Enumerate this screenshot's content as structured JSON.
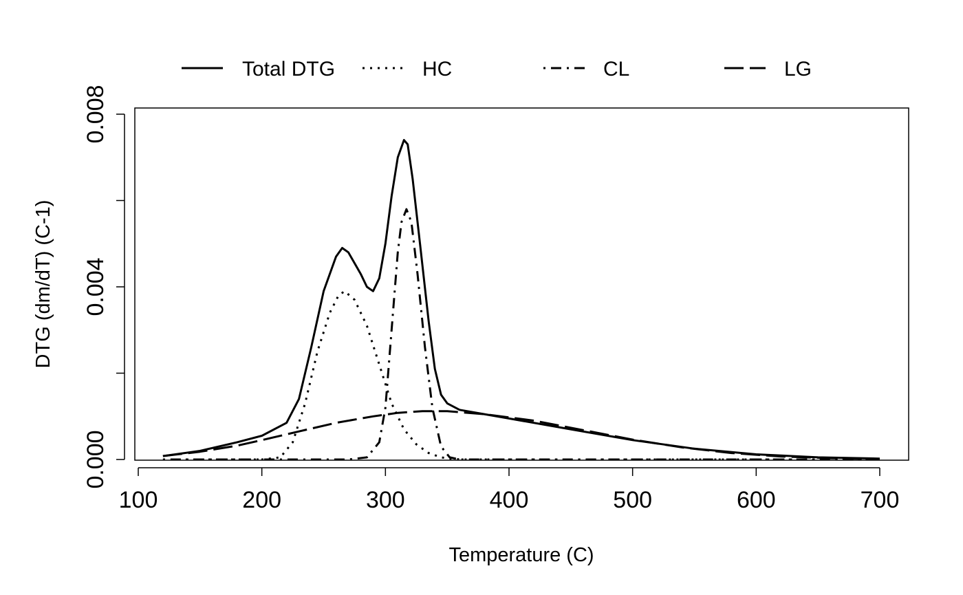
{
  "chart_data": {
    "type": "line",
    "title": "",
    "xlabel": "Temperature (C)",
    "ylabel": "DTG (dm/dT) (C-1)",
    "xlim": [
      100,
      700
    ],
    "ylim": [
      0.0,
      0.008
    ],
    "x_ticks": [
      100,
      200,
      300,
      400,
      500,
      600,
      700
    ],
    "x_tick_labels": [
      "100",
      "200",
      "300",
      "400",
      "500",
      "600",
      "700"
    ],
    "y_ticks": [
      0.0,
      0.002,
      0.004,
      0.006,
      0.008
    ],
    "y_tick_labels": [
      "0.000",
      "",
      "0.004",
      "",
      "0.008"
    ],
    "grid": false,
    "legend_position": "top",
    "legend": [
      {
        "name": "Total DTG",
        "style": "solid"
      },
      {
        "name": "HC",
        "style": "dotted"
      },
      {
        "name": "CL",
        "style": "dashdot"
      },
      {
        "name": "LG",
        "style": "longdash"
      }
    ],
    "series": [
      {
        "name": "Total DTG",
        "style": "solid",
        "x": [
          120,
          150,
          180,
          200,
          220,
          230,
          240,
          250,
          260,
          265,
          270,
          280,
          285,
          290,
          295,
          300,
          305,
          310,
          315,
          318,
          322,
          328,
          335,
          340,
          345,
          350,
          360,
          380,
          400,
          450,
          500,
          550,
          600,
          650,
          700
        ],
        "y": [
          8e-05,
          0.0002,
          0.0004,
          0.00055,
          0.00085,
          0.0014,
          0.0026,
          0.0039,
          0.0047,
          0.0049,
          0.0048,
          0.0043,
          0.004,
          0.0039,
          0.0042,
          0.005,
          0.0061,
          0.007,
          0.0074,
          0.0073,
          0.0065,
          0.005,
          0.0032,
          0.0021,
          0.0015,
          0.0013,
          0.00115,
          0.00105,
          0.00095,
          0.0007,
          0.00045,
          0.00025,
          0.00012,
          5e-05,
          2e-05
        ]
      },
      {
        "name": "HC",
        "style": "dotted",
        "x": [
          120,
          200,
          215,
          225,
          235,
          245,
          255,
          262,
          267,
          275,
          285,
          295,
          305,
          315,
          325,
          335,
          345,
          355,
          365,
          700
        ],
        "y": [
          0.0,
          0.0,
          5e-05,
          0.0004,
          0.0013,
          0.0025,
          0.0034,
          0.0038,
          0.0039,
          0.0037,
          0.0031,
          0.0022,
          0.0013,
          0.0007,
          0.00035,
          0.00015,
          5e-05,
          1e-05,
          0.0,
          0.0
        ]
      },
      {
        "name": "CL",
        "style": "dashdot",
        "x": [
          120,
          270,
          285,
          295,
          300,
          305,
          310,
          313,
          317,
          321,
          326,
          332,
          338,
          345,
          352,
          360,
          700
        ],
        "y": [
          0.0,
          0.0,
          5e-05,
          0.0004,
          0.0012,
          0.003,
          0.0048,
          0.0055,
          0.0058,
          0.0055,
          0.0043,
          0.0026,
          0.0012,
          0.0003,
          5e-05,
          0.0,
          0.0
        ]
      },
      {
        "name": "LG",
        "style": "longdash",
        "x": [
          120,
          150,
          180,
          200,
          230,
          260,
          290,
          310,
          330,
          350,
          380,
          420,
          460,
          500,
          540,
          580,
          620,
          660,
          700
        ],
        "y": [
          8e-05,
          0.00018,
          0.00032,
          0.00045,
          0.00065,
          0.00085,
          0.001,
          0.00108,
          0.00112,
          0.00112,
          0.00105,
          0.0009,
          0.00068,
          0.00046,
          0.00028,
          0.00015,
          7e-05,
          3e-05,
          1e-05
        ]
      }
    ]
  }
}
